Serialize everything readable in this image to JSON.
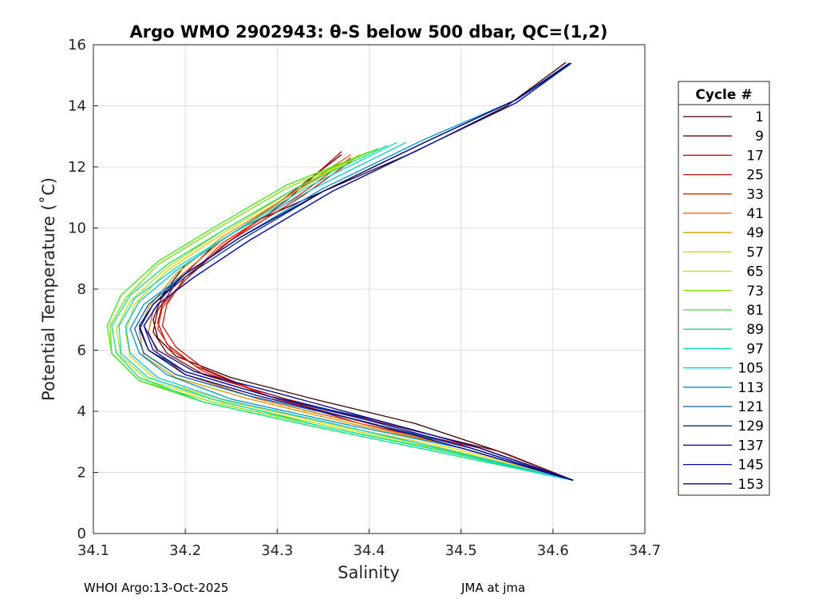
{
  "chart_data": {
    "type": "line",
    "title": "Argo WMO 2902943: θ-S below 500 dbar,  QC=(1,2)",
    "xlabel": "Salinity",
    "ylabel": "Potential Temperature (˚C)",
    "xlim": [
      34.1,
      34.7
    ],
    "ylim": [
      0,
      16
    ],
    "xticks": [
      "34.1",
      "34.2",
      "34.3",
      "34.4",
      "34.5",
      "34.6",
      "34.7"
    ],
    "yticks": [
      "0",
      "2",
      "4",
      "6",
      "8",
      "10",
      "12",
      "14",
      "16"
    ],
    "grid": true,
    "legend": {
      "title": "Cycle #",
      "placement": "outside-right",
      "entries": [
        {
          "label": "1",
          "color": "#3a0000"
        },
        {
          "label": "9",
          "color": "#800000"
        },
        {
          "label": "17",
          "color": "#b00000"
        },
        {
          "label": "25",
          "color": "#d41010"
        },
        {
          "label": "33",
          "color": "#e02a00"
        },
        {
          "label": "41",
          "color": "#e86000"
        },
        {
          "label": "49",
          "color": "#d89a00"
        },
        {
          "label": "57",
          "color": "#e0d000"
        },
        {
          "label": "65",
          "color": "#c0e000"
        },
        {
          "label": "73",
          "color": "#80e000"
        },
        {
          "label": "81",
          "color": "#40e020"
        },
        {
          "label": "89",
          "color": "#10e080"
        },
        {
          "label": "97",
          "color": "#00e0c0"
        },
        {
          "label": "105",
          "color": "#00c8e0"
        },
        {
          "label": "113",
          "color": "#0090c0"
        },
        {
          "label": "121",
          "color": "#0060a0"
        },
        {
          "label": "129",
          "color": "#003090"
        },
        {
          "label": "137",
          "color": "#000090"
        },
        {
          "label": "145",
          "color": "#0010b0"
        },
        {
          "label": "153",
          "color": "#000080"
        }
      ]
    },
    "series": [
      {
        "name": "1",
        "color": "#3a0000",
        "salinity": [
          34.622,
          34.55,
          34.45,
          34.34,
          34.25,
          34.19,
          34.17,
          34.165,
          34.175,
          34.2,
          34.26,
          34.35,
          34.45,
          34.55,
          34.614
        ],
        "theta": [
          1.74,
          2.6,
          3.6,
          4.4,
          5.1,
          5.8,
          6.4,
          7.0,
          7.8,
          8.8,
          10.0,
          11.2,
          12.5,
          14.0,
          15.42
        ]
      },
      {
        "name": "9",
        "color": "#800000",
        "salinity": [
          34.622,
          34.54,
          34.43,
          34.31,
          34.22,
          34.18,
          34.165,
          34.17,
          34.19,
          34.23,
          34.3,
          34.37
        ],
        "theta": [
          1.74,
          2.7,
          3.5,
          4.4,
          5.2,
          5.9,
          6.6,
          7.3,
          8.2,
          9.4,
          10.8,
          12.4
        ]
      },
      {
        "name": "17",
        "color": "#b00000",
        "salinity": [
          34.622,
          34.5,
          34.39,
          34.28,
          34.21,
          34.18,
          34.17,
          34.175,
          34.2,
          34.24,
          34.31,
          34.37
        ],
        "theta": [
          1.74,
          2.9,
          3.6,
          4.6,
          5.5,
          6.2,
          6.9,
          7.5,
          8.3,
          9.4,
          10.9,
          12.5
        ]
      },
      {
        "name": "25",
        "color": "#d41010",
        "salinity": [
          34.622,
          34.52,
          34.4,
          34.29,
          34.22,
          34.19,
          34.175,
          34.18,
          34.2,
          34.25,
          34.33,
          34.39
        ],
        "theta": [
          1.74,
          2.8,
          3.6,
          4.5,
          5.4,
          6.1,
          6.8,
          7.5,
          8.4,
          9.6,
          11.1,
          12.4
        ]
      },
      {
        "name": "33",
        "color": "#e02a00",
        "salinity": [
          34.622,
          34.51,
          34.4,
          34.3,
          34.22,
          34.185,
          34.17,
          34.175,
          34.2,
          34.24,
          34.32,
          34.38
        ],
        "theta": [
          1.74,
          2.8,
          3.6,
          4.4,
          5.3,
          6.0,
          6.7,
          7.4,
          8.3,
          9.5,
          11.0,
          12.3
        ]
      },
      {
        "name": "41",
        "color": "#e86000",
        "salinity": [
          34.622,
          34.5,
          34.39,
          34.28,
          34.2,
          34.17,
          34.16,
          34.165,
          34.19,
          34.24,
          34.32,
          34.38
        ],
        "theta": [
          1.74,
          2.8,
          3.6,
          4.4,
          5.2,
          5.9,
          6.6,
          7.3,
          8.3,
          9.6,
          11.2,
          12.4
        ]
      },
      {
        "name": "49",
        "color": "#d89a00",
        "salinity": [
          34.622,
          34.5,
          34.38,
          34.27,
          34.19,
          34.155,
          34.15,
          34.16,
          34.19,
          34.24,
          34.32,
          34.39
        ],
        "theta": [
          1.74,
          2.8,
          3.6,
          4.4,
          5.1,
          5.8,
          6.6,
          7.4,
          8.5,
          9.7,
          11.2,
          12.4
        ]
      },
      {
        "name": "57",
        "color": "#e0d000",
        "salinity": [
          34.622,
          34.49,
          34.37,
          34.25,
          34.17,
          34.14,
          34.135,
          34.145,
          34.18,
          34.24,
          34.32,
          34.39
        ],
        "theta": [
          1.74,
          2.8,
          3.5,
          4.3,
          5.0,
          5.8,
          6.6,
          7.5,
          8.6,
          9.8,
          11.3,
          12.4
        ]
      },
      {
        "name": "65",
        "color": "#c0e000",
        "salinity": [
          34.622,
          34.48,
          34.36,
          34.24,
          34.16,
          34.13,
          34.125,
          34.14,
          34.18,
          34.24,
          34.32,
          34.4
        ],
        "theta": [
          1.74,
          2.8,
          3.5,
          4.3,
          5.0,
          5.8,
          6.7,
          7.6,
          8.7,
          9.9,
          11.3,
          12.5
        ]
      },
      {
        "name": "73",
        "color": "#80e000",
        "salinity": [
          34.622,
          34.47,
          34.35,
          34.23,
          34.15,
          34.12,
          34.118,
          34.135,
          34.17,
          34.23,
          34.31,
          34.4
        ],
        "theta": [
          1.74,
          2.8,
          3.5,
          4.3,
          5.0,
          5.9,
          6.8,
          7.7,
          8.8,
          9.9,
          11.3,
          12.5
        ]
      },
      {
        "name": "81",
        "color": "#40e020",
        "salinity": [
          34.622,
          34.47,
          34.34,
          34.22,
          34.15,
          34.12,
          34.115,
          34.13,
          34.17,
          34.23,
          34.31,
          34.41
        ],
        "theta": [
          1.74,
          2.7,
          3.5,
          4.3,
          5.0,
          5.9,
          6.8,
          7.8,
          8.9,
          10.0,
          11.4,
          12.6
        ]
      },
      {
        "name": "89",
        "color": "#10e080",
        "salinity": [
          34.622,
          34.47,
          34.34,
          34.22,
          34.15,
          34.125,
          34.12,
          34.14,
          34.18,
          34.24,
          34.32,
          34.42
        ],
        "theta": [
          1.74,
          2.7,
          3.5,
          4.3,
          5.1,
          5.9,
          6.8,
          7.8,
          8.8,
          9.9,
          11.3,
          12.7
        ]
      },
      {
        "name": "97",
        "color": "#00e0c0",
        "salinity": [
          34.622,
          34.48,
          34.35,
          34.23,
          34.16,
          34.13,
          34.128,
          34.145,
          34.19,
          34.25,
          34.33,
          34.43
        ],
        "theta": [
          1.74,
          2.7,
          3.5,
          4.4,
          5.1,
          5.9,
          6.8,
          7.7,
          8.7,
          9.8,
          11.3,
          12.8
        ]
      },
      {
        "name": "105",
        "color": "#00c8e0",
        "salinity": [
          34.622,
          34.49,
          34.36,
          34.24,
          34.17,
          34.14,
          34.135,
          34.15,
          34.19,
          34.25,
          34.34,
          34.44
        ],
        "theta": [
          1.74,
          2.7,
          3.6,
          4.4,
          5.1,
          5.9,
          6.8,
          7.6,
          8.6,
          9.8,
          11.3,
          12.8
        ]
      },
      {
        "name": "113",
        "color": "#0090c0",
        "salinity": [
          34.622,
          34.5,
          34.37,
          34.25,
          34.18,
          34.15,
          34.14,
          34.155,
          34.2,
          34.26,
          34.35,
          34.46,
          34.56,
          34.616
        ],
        "theta": [
          1.74,
          2.8,
          3.6,
          4.4,
          5.2,
          5.9,
          6.7,
          7.5,
          8.5,
          9.7,
          11.3,
          12.9,
          14.2,
          15.3
        ]
      },
      {
        "name": "121",
        "color": "#0060a0",
        "salinity": [
          34.622,
          34.51,
          34.39,
          34.27,
          34.19,
          34.155,
          34.145,
          34.16,
          34.2,
          34.26,
          34.35,
          34.46,
          34.56,
          34.618
        ],
        "theta": [
          1.74,
          2.8,
          3.7,
          4.5,
          5.2,
          5.9,
          6.7,
          7.5,
          8.5,
          9.7,
          11.2,
          12.8,
          14.2,
          15.35
        ]
      },
      {
        "name": "129",
        "color": "#003090",
        "salinity": [
          34.622,
          34.52,
          34.41,
          34.29,
          34.2,
          34.16,
          34.15,
          34.165,
          34.2,
          34.26,
          34.35,
          34.46,
          34.56,
          34.62
        ],
        "theta": [
          1.74,
          2.8,
          3.7,
          4.5,
          5.3,
          6.0,
          6.7,
          7.5,
          8.4,
          9.6,
          11.2,
          12.8,
          14.2,
          15.4
        ]
      },
      {
        "name": "137",
        "color": "#000090",
        "salinity": [
          34.622,
          34.52,
          34.41,
          34.3,
          34.21,
          34.17,
          34.155,
          34.17,
          34.21,
          34.27,
          34.36,
          34.47,
          34.56,
          34.62
        ],
        "theta": [
          1.74,
          2.8,
          3.7,
          4.6,
          5.3,
          6.0,
          6.8,
          7.5,
          8.4,
          9.6,
          11.2,
          12.8,
          14.1,
          15.4
        ]
      },
      {
        "name": "145",
        "color": "#0010b0",
        "salinity": [
          34.622,
          34.51,
          34.4,
          34.29,
          34.2,
          34.165,
          34.155,
          34.17,
          34.21,
          34.27,
          34.36,
          34.47,
          34.56,
          34.62
        ],
        "theta": [
          1.74,
          2.8,
          3.7,
          4.5,
          5.3,
          6.0,
          6.8,
          7.5,
          8.4,
          9.6,
          11.2,
          12.8,
          14.1,
          15.4
        ]
      },
      {
        "name": "153",
        "color": "#000080",
        "salinity": [
          34.622,
          34.5,
          34.39,
          34.28,
          34.2,
          34.16,
          34.15,
          34.165,
          34.2,
          34.26,
          34.35,
          34.46,
          34.56,
          34.618
        ],
        "theta": [
          1.74,
          2.8,
          3.7,
          4.5,
          5.2,
          6.0,
          6.8,
          7.5,
          8.5,
          9.7,
          11.2,
          12.8,
          14.2,
          15.4
        ]
      }
    ]
  },
  "footer": {
    "left": "WHOI Argo:13-Oct-2025",
    "right": "JMA at jma"
  }
}
